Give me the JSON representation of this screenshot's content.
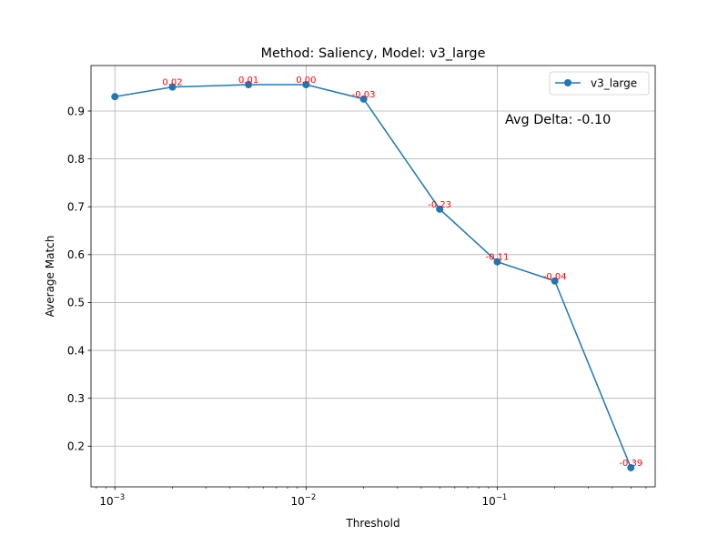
{
  "chart_data": {
    "type": "line",
    "title": "Method: Saliency, Model: v3_large",
    "xlabel": "Threshold",
    "ylabel": "Average Match",
    "xscale": "log",
    "xlim": [
      0.00075,
      0.67
    ],
    "ylim": [
      0.115,
      0.995
    ],
    "grid": true,
    "legend_placement": "top-right",
    "x_ticks": [
      0.001,
      0.01,
      0.1
    ],
    "x_tick_labels": [
      {
        "base": "10",
        "exp": "−3"
      },
      {
        "base": "10",
        "exp": "−2"
      },
      {
        "base": "10",
        "exp": "−1"
      }
    ],
    "y_ticks": [
      0.2,
      0.3,
      0.4,
      0.5,
      0.6,
      0.7,
      0.8,
      0.9
    ],
    "y_tick_labels": [
      "0.2",
      "0.3",
      "0.4",
      "0.5",
      "0.6",
      "0.7",
      "0.8",
      "0.9"
    ],
    "series": [
      {
        "name": "v3_large",
        "color": "#1f77b4",
        "x": [
          0.001,
          0.002,
          0.005,
          0.01,
          0.02,
          0.05,
          0.1,
          0.2,
          0.5
        ],
        "y": [
          0.93,
          0.95,
          0.955,
          0.955,
          0.925,
          0.695,
          0.585,
          0.545,
          0.155
        ],
        "point_labels": [
          "",
          "0.02",
          "0.01",
          "0.00",
          "-0.03",
          "-0.23",
          "-0.11",
          "-0.04",
          "-0.39"
        ],
        "label_color": "#ff0000"
      }
    ],
    "annotation": "Avg Delta: -0.10"
  }
}
